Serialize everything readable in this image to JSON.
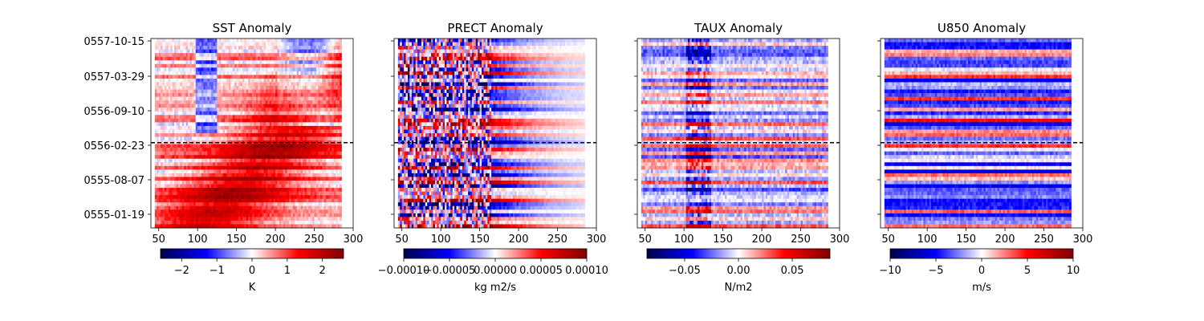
{
  "figure": {
    "ytick_labels": [
      "0557-10-15",
      "0557-03-29",
      "0556-09-10",
      "0556-02-23",
      "0555-08-07",
      "0555-01-19"
    ],
    "x_ticks": [
      50,
      100,
      150,
      200,
      250,
      300
    ],
    "xlim": [
      40,
      300
    ],
    "data_x_range": [
      45,
      283
    ],
    "n_rows": 52,
    "dashed_line_row_fraction": 0.55
  },
  "chart_data": [
    {
      "type": "heatmap",
      "title": "SST Anomaly",
      "colormap": "seismic",
      "colorbar_label": "K",
      "clim": [
        -2.6,
        2.6
      ],
      "colorbar_ticks": [
        -2,
        -1,
        0,
        1,
        2
      ],
      "colorbar_tick_labels": [
        "−2",
        "−1",
        "0",
        "1",
        "2"
      ],
      "pattern": "sst",
      "seed": 11
    },
    {
      "type": "heatmap",
      "title": "PRECT Anomaly",
      "colormap": "seismic",
      "colorbar_label": "kg m2/s",
      "clim": [
        -0.0001,
        0.0001
      ],
      "colorbar_ticks": [
        -0.0001,
        -5e-05,
        0,
        5e-05,
        0.0001
      ],
      "colorbar_tick_labels": [
        "−0.00010",
        "−0.00005",
        "0.00000",
        "0.00005",
        "0.00010"
      ],
      "pattern": "prect",
      "seed": 23
    },
    {
      "type": "heatmap",
      "title": "TAUX Anomaly",
      "colormap": "seismic",
      "colorbar_label": "N/m2",
      "clim": [
        -0.085,
        0.085
      ],
      "colorbar_ticks": [
        -0.05,
        0,
        0.05
      ],
      "colorbar_tick_labels": [
        "−0.05",
        "0.00",
        "0.05"
      ],
      "pattern": "taux",
      "seed": 37
    },
    {
      "type": "heatmap",
      "title": "U850 Anomaly",
      "colormap": "seismic",
      "colorbar_label": "m/s",
      "clim": [
        -10,
        10
      ],
      "colorbar_ticks": [
        -10,
        -5,
        0,
        5,
        10
      ],
      "colorbar_tick_labels": [
        "−10",
        "−5",
        "0",
        "5",
        "10"
      ],
      "pattern": "u850",
      "seed": 53
    }
  ]
}
